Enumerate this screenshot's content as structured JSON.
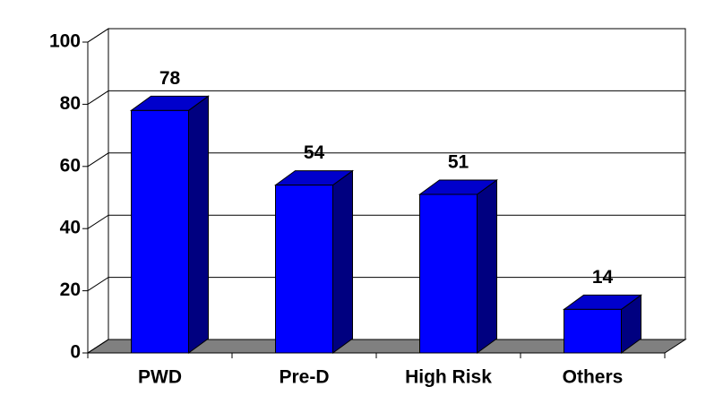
{
  "chart_data": {
    "type": "bar3d",
    "categories": [
      "PWD",
      "Pre-D",
      "High Risk",
      "Others"
    ],
    "values": [
      78,
      54,
      51,
      14
    ],
    "color": "#0000ff",
    "ylim": [
      0,
      100
    ],
    "yticks": [
      0,
      20,
      40,
      60,
      80,
      100
    ],
    "grid": true
  }
}
